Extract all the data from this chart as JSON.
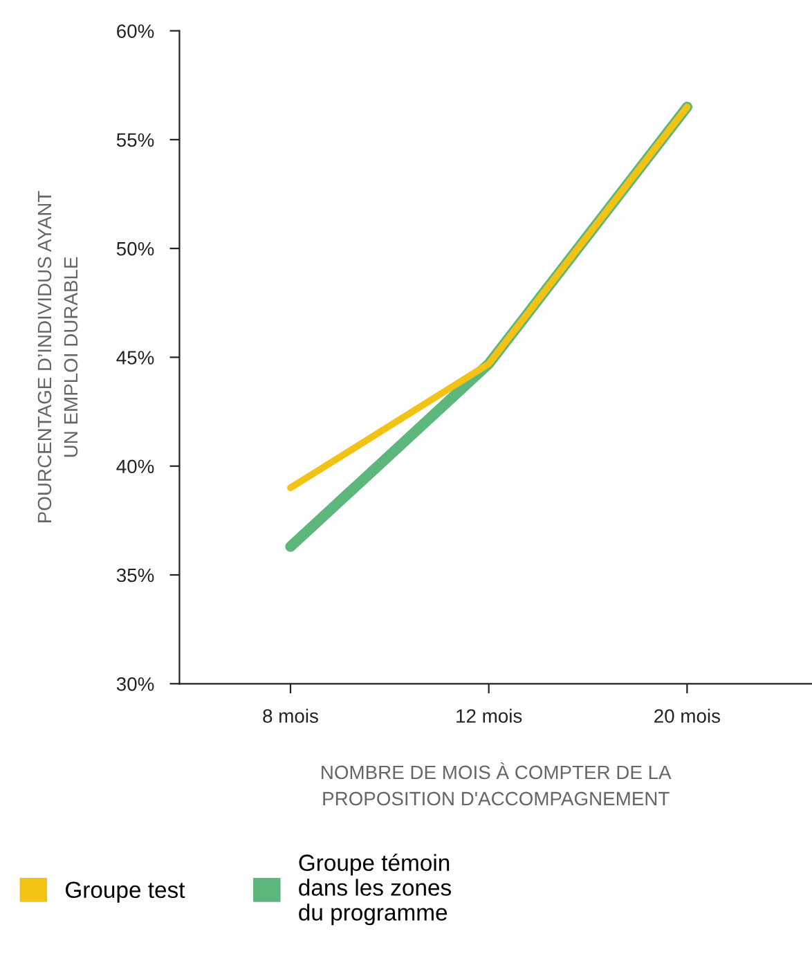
{
  "chart_data": {
    "type": "line",
    "xlabel": "NOMBRE DE MOIS À COMPTER DE LA\nPROPOSITION D'ACCOMPAGNEMENT",
    "ylabel": "POURCENTAGE D’INDIVIDUS AYANT\nUN EMPLOI DURABLE",
    "categories": [
      "8 mois",
      "12 mois",
      "20 mois"
    ],
    "series": [
      {
        "name": "Groupe témoin\ndans les zones\ndu programme",
        "color": "#5db67c",
        "values": [
          36.3,
          44.7,
          56.5
        ]
      },
      {
        "name": "Groupe test",
        "color": "#f2c314",
        "values": [
          39.0,
          44.7,
          56.5
        ]
      }
    ],
    "ylim": [
      30,
      60
    ],
    "yticks": [
      {
        "value": 30,
        "label": "30%"
      },
      {
        "value": 35,
        "label": "35%"
      },
      {
        "value": 40,
        "label": "40%"
      },
      {
        "value": 45,
        "label": "45%"
      },
      {
        "value": 50,
        "label": "50%"
      },
      {
        "value": 55,
        "label": "55%"
      },
      {
        "value": 60,
        "label": "60%"
      }
    ],
    "grid": false,
    "legend": "bottom",
    "marker": "none",
    "line_style": "solid"
  }
}
